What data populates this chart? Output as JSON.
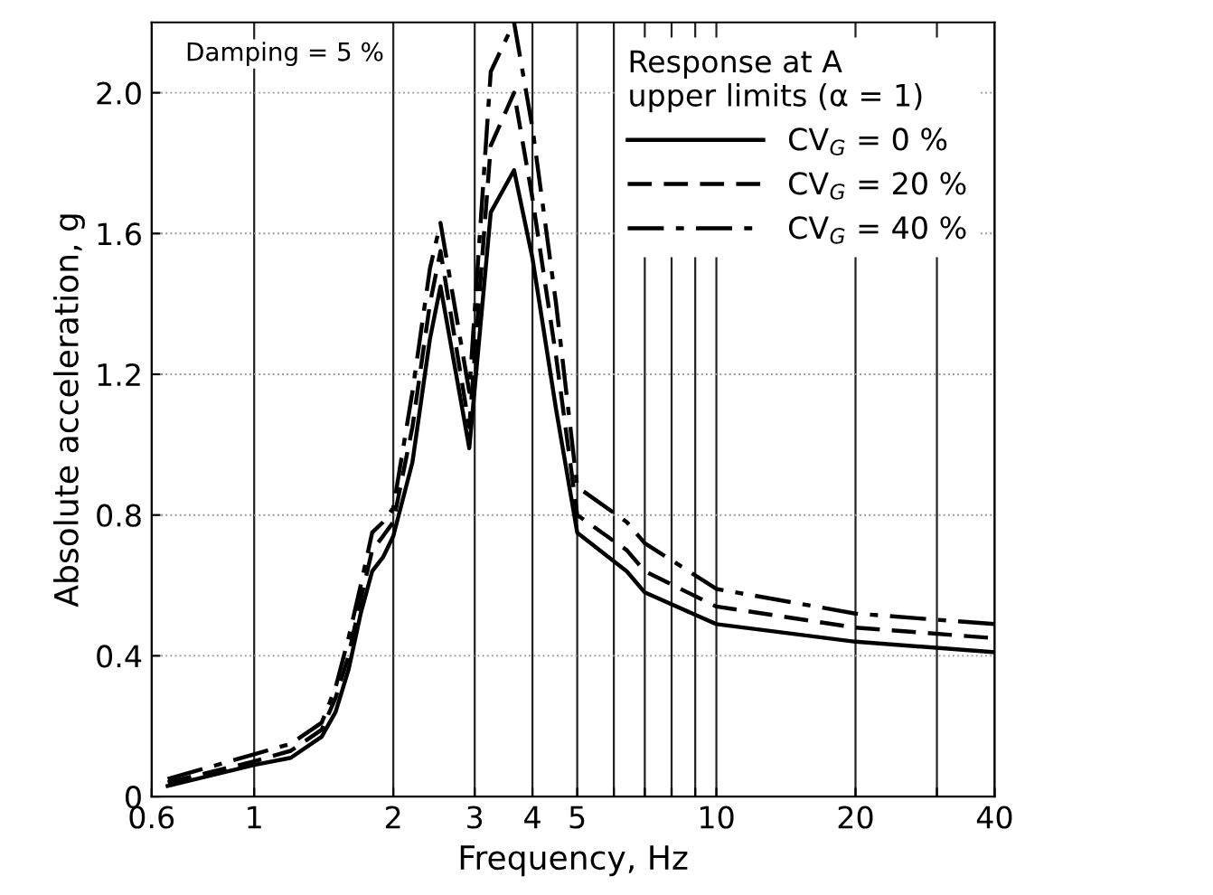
{
  "chart_data": {
    "type": "line",
    "xlabel": "Frequency, Hz",
    "ylabel": "Absolute acceleration, g",
    "legend_title": "Response at A\nupper limits (α = 1)",
    "annotations": [
      "Damping = 5 %"
    ],
    "log": "x",
    "xlim": [
      0.6,
      40
    ],
    "ylim": [
      0,
      2.2
    ],
    "xticks": [
      0.6,
      1,
      2,
      3,
      4,
      5,
      {
        "value": 6,
        "label": null
      },
      {
        "value": 7,
        "label": null
      },
      {
        "value": 8,
        "label": null
      },
      {
        "value": 9,
        "label": null
      },
      10,
      20,
      {
        "value": 30,
        "label": null
      },
      40
    ],
    "yticks": [
      0,
      0.4,
      0.8,
      1.2,
      1.6,
      {
        "value": 2,
        "label": "2.0"
      }
    ],
    "grid": true,
    "legend": "top right",
    "marker": "none",
    "x": [
      0.65,
      1.0,
      1.2,
      1.4,
      1.5,
      1.6,
      1.7,
      1.8,
      1.9,
      2.0,
      2.2,
      2.4,
      2.53,
      2.92,
      3.25,
      3.65,
      4.0,
      4.5,
      5.0,
      6.4,
      7.0,
      10,
      20,
      40
    ],
    "series": [
      {
        "name": "CV$_{G}$ = 0 %",
        "color": "#000000",
        "line_style": "solid",
        "values": [
          0.03,
          0.09,
          0.11,
          0.17,
          0.24,
          0.36,
          0.52,
          0.64,
          0.68,
          0.74,
          0.95,
          1.3,
          1.45,
          0.99,
          1.66,
          1.78,
          1.53,
          1.1,
          0.75,
          0.64,
          0.58,
          0.49,
          0.44,
          0.41
        ]
      },
      {
        "name": "CV$_{G}$ = 20 %",
        "color": "#000000",
        "line_style": "dashed",
        "values": [
          0.04,
          0.1,
          0.13,
          0.19,
          0.28,
          0.4,
          0.56,
          0.7,
          0.74,
          0.78,
          1.05,
          1.4,
          1.55,
          1.05,
          1.85,
          2.0,
          1.7,
          1.25,
          0.8,
          0.7,
          0.64,
          0.54,
          0.48,
          0.45
        ]
      },
      {
        "name": "CV$_{G}$ = 40 %",
        "color": "#000000",
        "line_style": "dashdot",
        "values": [
          0.05,
          0.12,
          0.15,
          0.21,
          0.31,
          0.45,
          0.6,
          0.75,
          0.78,
          0.82,
          1.15,
          1.5,
          1.63,
          1.15,
          2.06,
          2.2,
          1.9,
          1.4,
          0.88,
          0.78,
          0.72,
          0.59,
          0.52,
          0.49
        ]
      }
    ]
  }
}
